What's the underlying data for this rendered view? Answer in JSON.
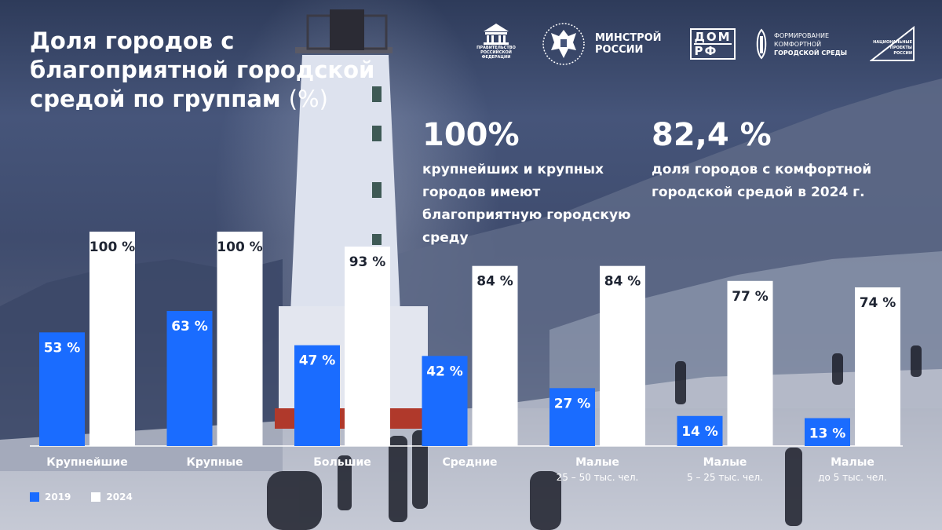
{
  "title": {
    "text": "Доля городов с благоприятной городской средой по группам",
    "unit": "(%)"
  },
  "logos": {
    "government": {
      "name": "government-emblem-icon",
      "caption": "ПРАВИТЕЛЬСТВО РОССИЙСКОЙ ФЕДЕРАЦИИ"
    },
    "minstroy": {
      "name": "coat-of-arms-icon",
      "text_line1": "МИНСТРОЙ",
      "text_line2": "РОССИИ"
    },
    "domrf": {
      "name": "dom-rf-logo-icon",
      "text_line1": "ДОМ",
      "text_line2": "РФ"
    },
    "comfort": {
      "name": "comfort-city-logo-icon",
      "text_line1": "ФОРМИРОВАНИЕ",
      "text_line2": "КОМФОРТНОЙ",
      "text_line3": "ГОРОДСКОЙ СРЕДЫ"
    },
    "national_projects": {
      "name": "national-projects-logo-icon",
      "text_line1": "НАЦИОНАЛЬНЫЕ",
      "text_line2": "ПРОЕКТЫ",
      "text_line3": "РОССИИ"
    }
  },
  "stats": [
    {
      "value": "100%",
      "description": "крупнейших и крупных городов имеют благоприятную городскую среду"
    },
    {
      "value": "82,4 %",
      "description": "доля городов с комфортной городской средой в 2024 г."
    }
  ],
  "colors": {
    "series_2019": "#1a6cff",
    "series_2024": "#ffffff",
    "label_2019": "#ffffff",
    "label_2024": "#1e2432"
  },
  "chart_data": {
    "type": "bar",
    "title": "Доля городов с благоприятной городской средой по группам",
    "ylabel": "%",
    "ylim": [
      0,
      100
    ],
    "grid": false,
    "legend_position": "bottom-left",
    "categories": [
      {
        "name": "Крупнейшие",
        "sub": ""
      },
      {
        "name": "Крупные",
        "sub": ""
      },
      {
        "name": "Большие",
        "sub": ""
      },
      {
        "name": "Средние",
        "sub": ""
      },
      {
        "name": "Малые",
        "sub": "25 – 50 тыс. чел."
      },
      {
        "name": "Малые",
        "sub": "5 – 25 тыс. чел."
      },
      {
        "name": "Малые",
        "sub": "до 5 тыс. чел."
      }
    ],
    "series": [
      {
        "name": "2019",
        "values": [
          53,
          63,
          47,
          42,
          27,
          14,
          13
        ],
        "labels": [
          "53 %",
          "63 %",
          "47 %",
          "42 %",
          "27 %",
          "14 %",
          "13 %"
        ]
      },
      {
        "name": "2024",
        "values": [
          100,
          100,
          93,
          84,
          84,
          77,
          74
        ],
        "labels": [
          "100 %",
          "100 %",
          "93 %",
          "84 %",
          "84 %",
          "77 %",
          "74 %"
        ]
      }
    ]
  }
}
